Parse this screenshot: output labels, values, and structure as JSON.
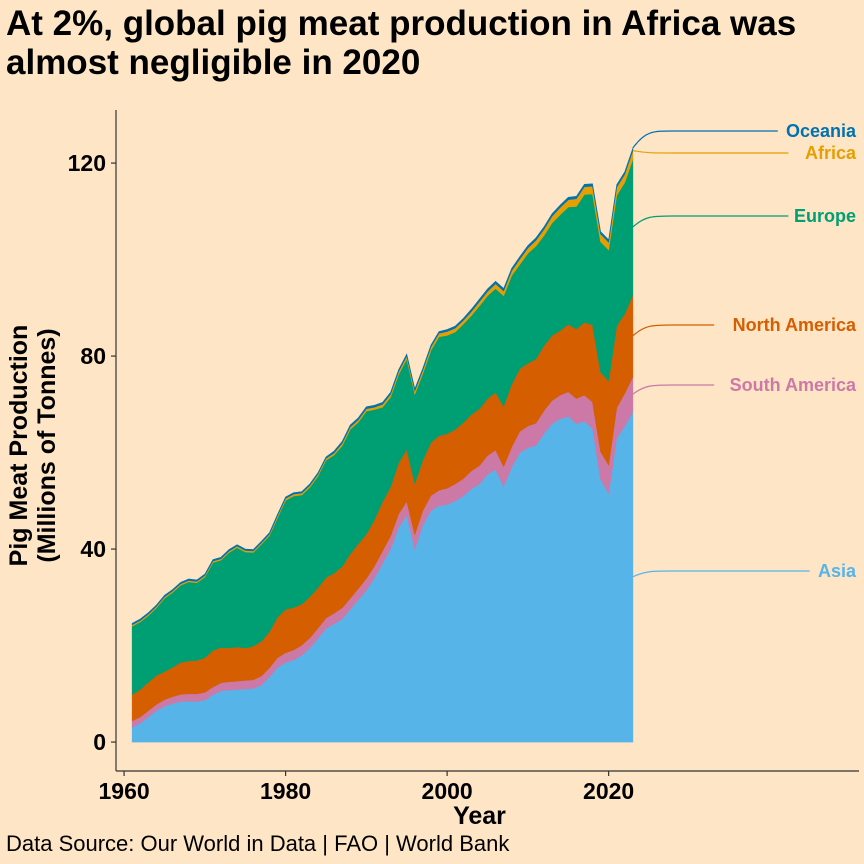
{
  "title": "At 2%, global pig meat production in Africa was almost negligible in 2020",
  "caption": "Data Source: Our World in Data | FAO | World Bank",
  "colors": {
    "background": "#fde5c5",
    "Asia": "#56b4e9",
    "South America": "#cc79a7",
    "North America": "#d55e00",
    "Europe": "#009e73",
    "Africa": "#e69f00",
    "Oceania": "#0072b2"
  },
  "chart_data": {
    "type": "area",
    "stacked": true,
    "xlabel": "Year",
    "ylabel_lines": [
      "Pig Meat Production",
      "(Millions of Tonnes)"
    ],
    "xlim": [
      1959,
      2051
    ],
    "ylim": [
      -6,
      131
    ],
    "xticks": [
      1960,
      1980,
      2000,
      2020
    ],
    "yticks": [
      0,
      40,
      80,
      120
    ],
    "grid": false,
    "legend": "direct labels at right end of series",
    "x": [
      1961,
      1962,
      1963,
      1964,
      1965,
      1966,
      1967,
      1968,
      1969,
      1970,
      1971,
      1972,
      1973,
      1974,
      1975,
      1976,
      1977,
      1978,
      1979,
      1980,
      1981,
      1982,
      1983,
      1984,
      1985,
      1986,
      1987,
      1988,
      1989,
      1990,
      1991,
      1992,
      1993,
      1994,
      1995,
      1996,
      1997,
      1998,
      1999,
      2000,
      2001,
      2002,
      2003,
      2004,
      2005,
      2006,
      2007,
      2008,
      2009,
      2010,
      2011,
      2012,
      2013,
      2014,
      2015,
      2016,
      2017,
      2018,
      2019,
      2020,
      2021,
      2022,
      2023
    ],
    "series": [
      {
        "name": "Asia",
        "values": [
          3.1,
          3.9,
          5.2,
          6.5,
          7.4,
          8.0,
          8.4,
          8.5,
          8.4,
          8.7,
          9.8,
          10.6,
          10.8,
          10.9,
          11.0,
          11.1,
          11.8,
          13.5,
          15.5,
          16.5,
          17.0,
          18.0,
          19.5,
          21.5,
          23.5,
          24.5,
          25.5,
          27.5,
          29.5,
          31.5,
          34.0,
          37.0,
          40.0,
          44.5,
          47.0,
          40.0,
          45.0,
          48.0,
          49.0,
          49.2,
          50.0,
          51.0,
          52.5,
          53.5,
          55.5,
          56.5,
          53.0,
          57.0,
          60.0,
          61.0,
          61.5,
          64.0,
          66.0,
          67.0,
          67.5,
          66.0,
          66.5,
          65.0,
          54.5,
          51.5,
          63.0,
          65.5,
          68.5
        ]
      },
      {
        "name": "South America",
        "values": [
          1.3,
          1.3,
          1.3,
          1.3,
          1.4,
          1.4,
          1.5,
          1.5,
          1.6,
          1.6,
          1.6,
          1.7,
          1.7,
          1.7,
          1.8,
          1.8,
          1.9,
          1.9,
          2.0,
          2.0,
          2.1,
          2.1,
          2.1,
          2.1,
          2.2,
          2.2,
          2.3,
          2.3,
          2.3,
          2.4,
          2.5,
          2.6,
          2.7,
          2.8,
          2.9,
          3.0,
          3.0,
          3.1,
          3.2,
          3.4,
          3.5,
          3.6,
          3.7,
          3.8,
          3.9,
          4.0,
          4.1,
          4.2,
          4.4,
          4.5,
          4.6,
          4.7,
          4.8,
          4.9,
          5.1,
          5.2,
          5.4,
          5.5,
          5.7,
          5.9,
          6.3,
          6.8,
          7.2
        ]
      },
      {
        "name": "North America",
        "values": [
          5.5,
          5.7,
          5.9,
          6.0,
          5.8,
          6.1,
          6.6,
          6.8,
          6.9,
          7.2,
          7.6,
          7.3,
          7.0,
          7.1,
          6.7,
          7.0,
          7.2,
          7.5,
          8.4,
          9.0,
          8.8,
          8.5,
          8.5,
          8.4,
          8.4,
          8.3,
          8.6,
          9.2,
          9.3,
          9.2,
          9.6,
          10.2,
          10.2,
          10.6,
          10.8,
          10.6,
          10.5,
          11.0,
          11.3,
          11.3,
          11.3,
          11.6,
          11.7,
          11.8,
          11.8,
          12.0,
          12.5,
          13.0,
          13.0,
          13.0,
          13.3,
          13.5,
          13.5,
          13.4,
          14.0,
          14.4,
          15.1,
          16.0,
          16.5,
          17.5,
          17.0,
          16.5,
          17.0
        ]
      },
      {
        "name": "Europe",
        "values": [
          14.1,
          14.0,
          13.8,
          14.0,
          15.2,
          15.5,
          16.0,
          16.4,
          16.1,
          16.7,
          18.2,
          18.1,
          19.8,
          20.6,
          19.9,
          19.4,
          20.1,
          19.9,
          20.6,
          22.6,
          23.1,
          22.6,
          22.7,
          23.1,
          24.3,
          24.5,
          25.0,
          25.8,
          25.2,
          25.5,
          22.8,
          19.6,
          18.6,
          18.3,
          18.7,
          18.5,
          17.9,
          19.1,
          20.5,
          20.4,
          20.2,
          20.4,
          20.5,
          21.3,
          21.3,
          21.5,
          22.9,
          22.5,
          21.6,
          22.8,
          23.4,
          22.8,
          23.3,
          24.0,
          24.3,
          25.4,
          26.5,
          27.1,
          27.0,
          27.1,
          27.0,
          27.2,
          28.1
        ]
      },
      {
        "name": "Africa",
        "values": [
          0.3,
          0.3,
          0.3,
          0.3,
          0.3,
          0.3,
          0.3,
          0.3,
          0.3,
          0.3,
          0.3,
          0.3,
          0.3,
          0.3,
          0.3,
          0.3,
          0.3,
          0.3,
          0.4,
          0.4,
          0.4,
          0.4,
          0.4,
          0.4,
          0.4,
          0.4,
          0.5,
          0.5,
          0.5,
          0.5,
          0.5,
          0.6,
          0.6,
          0.6,
          0.6,
          0.7,
          0.7,
          0.7,
          0.7,
          0.8,
          0.8,
          0.8,
          0.8,
          0.9,
          0.9,
          1.0,
          1.0,
          1.0,
          1.1,
          1.1,
          1.2,
          1.3,
          1.4,
          1.5,
          1.5,
          1.6,
          1.6,
          1.6,
          1.6,
          1.6,
          1.7,
          1.7,
          1.8
        ]
      },
      {
        "name": "Oceania",
        "values": [
          0.3,
          0.3,
          0.3,
          0.3,
          0.3,
          0.3,
          0.3,
          0.3,
          0.3,
          0.3,
          0.3,
          0.3,
          0.3,
          0.3,
          0.3,
          0.3,
          0.3,
          0.3,
          0.3,
          0.3,
          0.3,
          0.3,
          0.3,
          0.3,
          0.3,
          0.4,
          0.4,
          0.4,
          0.4,
          0.4,
          0.4,
          0.4,
          0.4,
          0.4,
          0.4,
          0.4,
          0.4,
          0.4,
          0.4,
          0.4,
          0.4,
          0.4,
          0.5,
          0.5,
          0.5,
          0.5,
          0.5,
          0.5,
          0.5,
          0.5,
          0.5,
          0.5,
          0.5,
          0.5,
          0.5,
          0.5,
          0.5,
          0.5,
          0.5,
          0.5,
          0.5,
          0.5,
          0.5
        ]
      }
    ],
    "labels": [
      {
        "name": "Oceania",
        "text": "Oceania"
      },
      {
        "name": "Africa",
        "text": "Africa"
      },
      {
        "name": "Europe",
        "text": "Europe"
      },
      {
        "name": "North America",
        "text": "North America"
      },
      {
        "name": "South America",
        "text": "South America"
      },
      {
        "name": "Asia",
        "text": "Asia"
      }
    ]
  }
}
